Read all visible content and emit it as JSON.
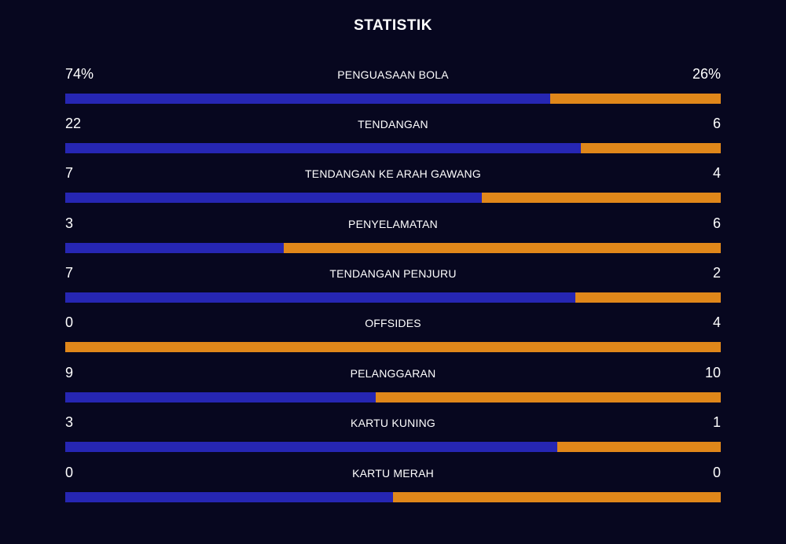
{
  "title": "STATISTIK",
  "colors": {
    "background": "#07071f",
    "home": "#2626b3",
    "away": "#e0871a"
  },
  "stats": [
    {
      "label": "PENGUASAAN BOLA",
      "home": "74%",
      "away": "26%",
      "home_share": 0.74
    },
    {
      "label": "TENDANGAN",
      "home": "22",
      "away": "6",
      "home_share": 0.786
    },
    {
      "label": "TENDANGAN KE ARAH GAWANG",
      "home": "7",
      "away": "4",
      "home_share": 0.636
    },
    {
      "label": "PENYELAMATAN",
      "home": "3",
      "away": "6",
      "home_share": 0.333
    },
    {
      "label": "TENDANGAN PENJURU",
      "home": "7",
      "away": "2",
      "home_share": 0.778
    },
    {
      "label": "OFFSIDES",
      "home": "0",
      "away": "4",
      "home_share": 0.0
    },
    {
      "label": "PELANGGARAN",
      "home": "9",
      "away": "10",
      "home_share": 0.474
    },
    {
      "label": "KARTU KUNING",
      "home": "3",
      "away": "1",
      "home_share": 0.75
    },
    {
      "label": "KARTU MERAH",
      "home": "0",
      "away": "0",
      "home_share": 0.5
    }
  ]
}
